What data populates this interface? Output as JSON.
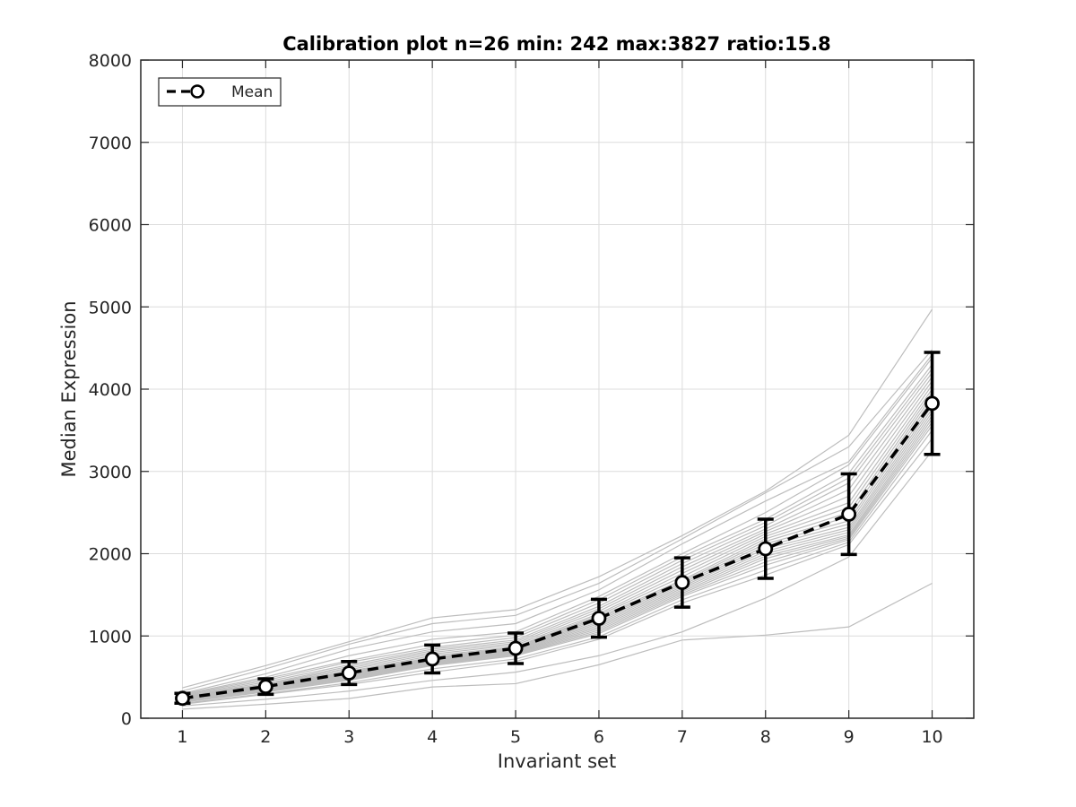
{
  "chart_data": {
    "type": "line",
    "title": "Calibration plot n=26 min: 242 max:3827 ratio:15.8",
    "xlabel": "Invariant set",
    "ylabel": "Median Expression",
    "xlim": [
      0.5,
      10.5
    ],
    "ylim": [
      0,
      8000
    ],
    "x_ticks": [
      1,
      2,
      3,
      4,
      5,
      6,
      7,
      8,
      9,
      10
    ],
    "y_ticks": [
      0,
      1000,
      2000,
      3000,
      4000,
      5000,
      6000,
      7000,
      8000
    ],
    "grid": true,
    "legend": {
      "position": "top-left",
      "entries": [
        "Mean"
      ]
    },
    "colors": {
      "mean": "#000000",
      "individual": "#bdbdbd",
      "grid": "#dcdcdc"
    },
    "x": [
      1,
      2,
      3,
      4,
      5,
      6,
      7,
      8,
      9,
      10
    ],
    "mean": {
      "name": "Mean",
      "values": [
        242,
        385,
        550,
        720,
        850,
        1215,
        1650,
        2060,
        2480,
        3827
      ],
      "error": [
        60,
        95,
        140,
        170,
        185,
        230,
        300,
        360,
        490,
        620
      ]
    },
    "individual_series": [
      [
        370,
        640,
        930,
        1220,
        1320,
        1720,
        2220,
        2760,
        3440,
        4970
      ],
      [
        330,
        600,
        900,
        1150,
        1250,
        1640,
        2180,
        2740,
        3300,
        4480
      ],
      [
        300,
        540,
        840,
        1050,
        1150,
        1560,
        2120,
        2640,
        3120,
        4420
      ],
      [
        290,
        500,
        760,
        960,
        1050,
        1480,
        2000,
        2500,
        3080,
        4380
      ],
      [
        280,
        480,
        700,
        900,
        1010,
        1440,
        1960,
        2420,
        2980,
        4300
      ],
      [
        270,
        460,
        680,
        860,
        980,
        1400,
        1920,
        2380,
        2920,
        4250
      ],
      [
        260,
        440,
        650,
        840,
        950,
        1360,
        1880,
        2340,
        2860,
        4200
      ],
      [
        255,
        420,
        630,
        820,
        930,
        1330,
        1840,
        2300,
        2780,
        4150
      ],
      [
        250,
        410,
        610,
        800,
        910,
        1300,
        1800,
        2270,
        2700,
        4100
      ],
      [
        245,
        400,
        590,
        780,
        890,
        1270,
        1760,
        2240,
        2620,
        4050
      ],
      [
        240,
        395,
        570,
        760,
        870,
        1250,
        1720,
        2210,
        2560,
        4000
      ],
      [
        240,
        390,
        560,
        740,
        860,
        1230,
        1680,
        2180,
        2500,
        3960
      ],
      [
        235,
        380,
        550,
        730,
        850,
        1210,
        1660,
        2150,
        2450,
        3920
      ],
      [
        230,
        375,
        540,
        720,
        840,
        1190,
        1640,
        2120,
        2400,
        3880
      ],
      [
        230,
        370,
        530,
        710,
        830,
        1170,
        1620,
        2090,
        2360,
        3840
      ],
      [
        225,
        365,
        520,
        700,
        820,
        1150,
        1600,
        2060,
        2320,
        3800
      ],
      [
        220,
        360,
        510,
        690,
        810,
        1130,
        1580,
        2030,
        2290,
        3760
      ],
      [
        215,
        350,
        500,
        680,
        800,
        1110,
        1560,
        2000,
        2260,
        3720
      ],
      [
        210,
        345,
        490,
        670,
        790,
        1090,
        1540,
        1970,
        2230,
        3680
      ],
      [
        205,
        340,
        480,
        660,
        780,
        1070,
        1520,
        1940,
        2210,
        3640
      ],
      [
        200,
        330,
        470,
        650,
        770,
        1050,
        1500,
        1900,
        2190,
        3600
      ],
      [
        195,
        320,
        460,
        640,
        760,
        1030,
        1480,
        1860,
        2170,
        3560
      ],
      [
        180,
        300,
        430,
        600,
        720,
        990,
        1440,
        1800,
        2140,
        3500
      ],
      [
        170,
        290,
        410,
        560,
        690,
        960,
        1400,
        1740,
        2110,
        3400
      ],
      [
        150,
        230,
        330,
        460,
        560,
        760,
        1050,
        1460,
        1960,
        3250
      ],
      [
        110,
        170,
        240,
        380,
        420,
        650,
        950,
        1010,
        1110,
        1640
      ]
    ]
  }
}
